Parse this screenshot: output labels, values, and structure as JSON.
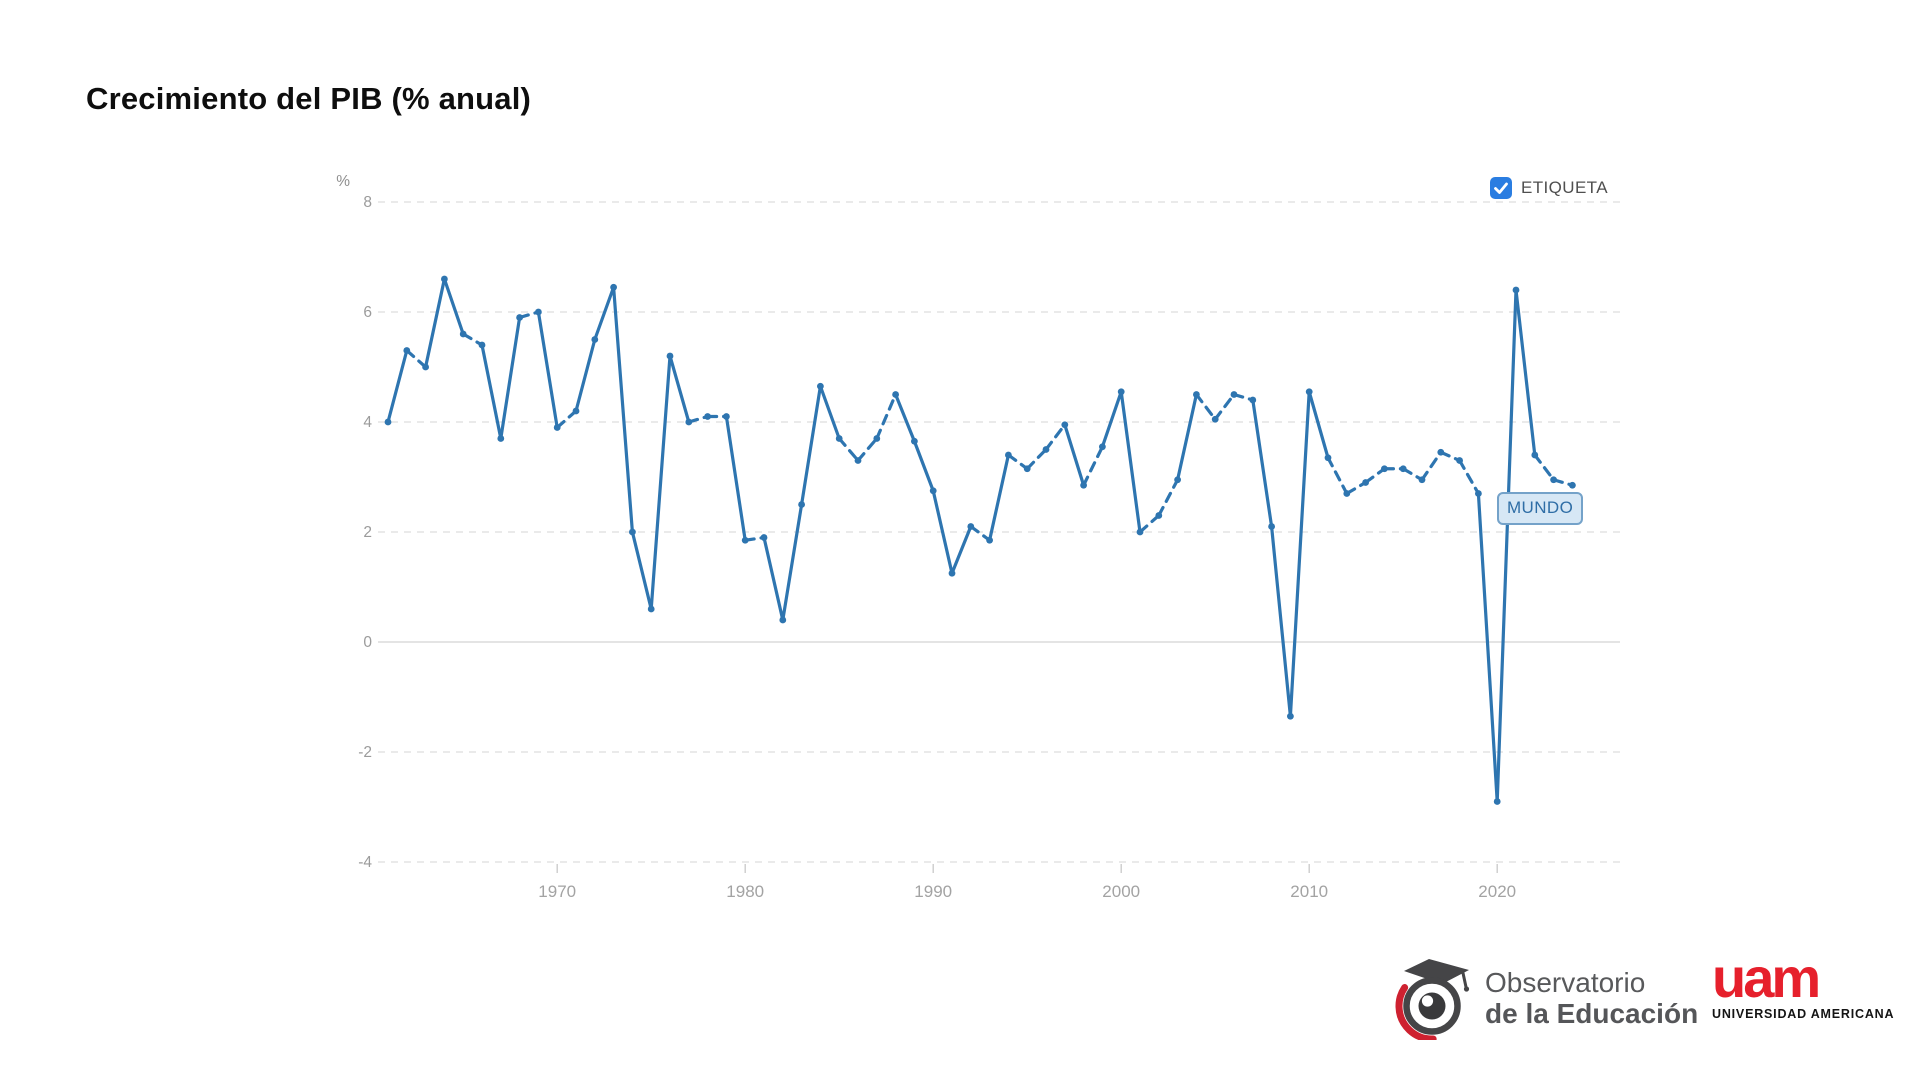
{
  "title": "Crecimiento del PIB (% anual)",
  "legend": {
    "label": "ETIQUETA",
    "checked": true,
    "checkbox_color": "#2a7de1"
  },
  "series_label": "MUNDO",
  "chart_data": {
    "type": "line",
    "title": "Crecimiento del PIB (% anual)",
    "xlabel": "",
    "ylabel": "%",
    "unit": "%",
    "ylim": [
      -4,
      8
    ],
    "yticks": [
      8,
      6,
      4,
      2,
      0,
      -2,
      -4
    ],
    "xticks": [
      1970,
      1980,
      1990,
      2000,
      2010,
      2020
    ],
    "grid": "dashed horizontal",
    "legend_position": "top-right",
    "line_color": "#2e75b0",
    "series": [
      {
        "name": "MUNDO",
        "x": [
          1961,
          1962,
          1963,
          1964,
          1965,
          1966,
          1967,
          1968,
          1969,
          1970,
          1971,
          1972,
          1973,
          1974,
          1975,
          1976,
          1977,
          1978,
          1979,
          1980,
          1981,
          1982,
          1983,
          1984,
          1985,
          1986,
          1987,
          1988,
          1989,
          1990,
          1991,
          1992,
          1993,
          1994,
          1995,
          1996,
          1997,
          1998,
          1999,
          2000,
          2001,
          2002,
          2003,
          2004,
          2005,
          2006,
          2007,
          2008,
          2009,
          2010,
          2011,
          2012,
          2013,
          2014,
          2015,
          2016,
          2017,
          2018,
          2019,
          2020,
          2021,
          2022,
          2023,
          2024
        ],
        "values": [
          4.0,
          5.3,
          5.0,
          6.6,
          5.6,
          5.4,
          3.7,
          5.9,
          6.0,
          3.9,
          4.2,
          5.5,
          6.45,
          2.0,
          0.6,
          5.2,
          4.0,
          4.1,
          4.1,
          1.85,
          1.9,
          0.4,
          2.5,
          4.65,
          3.7,
          3.3,
          3.7,
          4.5,
          3.65,
          2.75,
          1.25,
          2.1,
          1.85,
          3.4,
          3.15,
          3.5,
          3.95,
          2.85,
          3.55,
          4.55,
          2.0,
          2.3,
          2.95,
          4.5,
          4.05,
          4.5,
          4.4,
          2.1,
          -1.35,
          4.55,
          3.35,
          2.7,
          2.9,
          3.15,
          3.15,
          2.95,
          3.45,
          3.3,
          2.7,
          -2.9,
          6.4,
          3.4,
          2.95,
          2.85
        ]
      }
    ]
  },
  "footer": {
    "observatorio": {
      "line1": "Observatorio",
      "line2": "de la Educación"
    },
    "uam": {
      "word": "uam",
      "subtitle": "UNIVERSIDAD AMERICANA"
    }
  }
}
